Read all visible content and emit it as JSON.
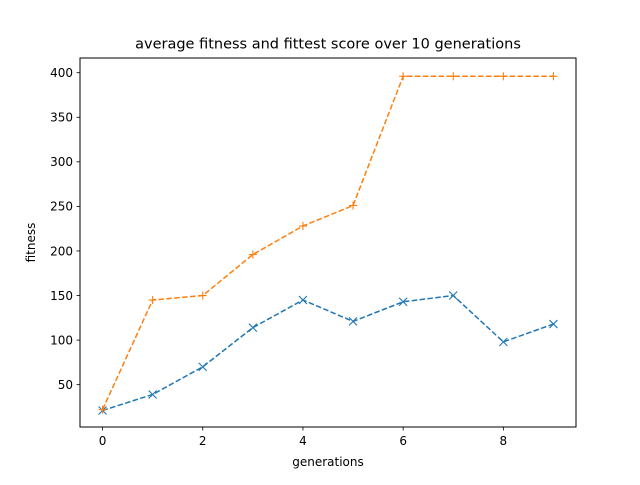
{
  "chart_data": {
    "type": "line",
    "title": "average fitness and fittest score over 10 generations",
    "xlabel": "generations",
    "ylabel": "fitness",
    "xlim": [
      -0.45,
      9.45
    ],
    "ylim": [
      2.5,
      416.5
    ],
    "x_ticks": [
      0,
      2,
      4,
      6,
      8
    ],
    "y_ticks": [
      50,
      100,
      150,
      200,
      250,
      300,
      350,
      400
    ],
    "grid": false,
    "legend": "none",
    "x": [
      0,
      1,
      2,
      3,
      4,
      5,
      6,
      7,
      8,
      9
    ],
    "series": [
      {
        "values": [
          21,
          39,
          70,
          114,
          145,
          121,
          143,
          150,
          98,
          118
        ],
        "color": "#1f77b4",
        "marker": "x",
        "linestyle": "dashed"
      },
      {
        "values": [
          22,
          145,
          150,
          196,
          228,
          251,
          396,
          396,
          396,
          396
        ],
        "color": "#ff7f0e",
        "marker": "+",
        "linestyle": "dashed"
      }
    ]
  }
}
